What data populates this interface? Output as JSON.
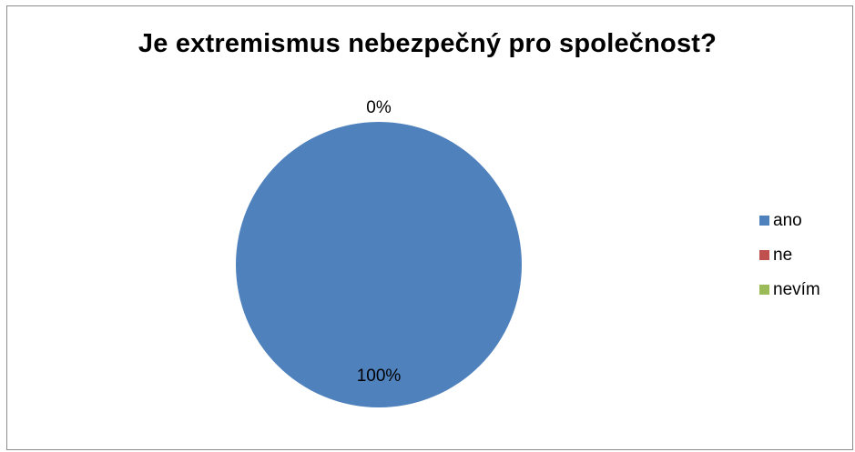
{
  "chart_data": {
    "type": "pie",
    "title": "Je extremismus nebezpečný pro společnost?",
    "categories": [
      "ano",
      "ne",
      "nevím"
    ],
    "values": [
      100,
      0,
      0
    ],
    "data_labels": [
      "100%",
      "0%",
      "0%"
    ],
    "colors": [
      "#4f81bd",
      "#c0504d",
      "#9bbb59"
    ],
    "legend_position": "right"
  }
}
